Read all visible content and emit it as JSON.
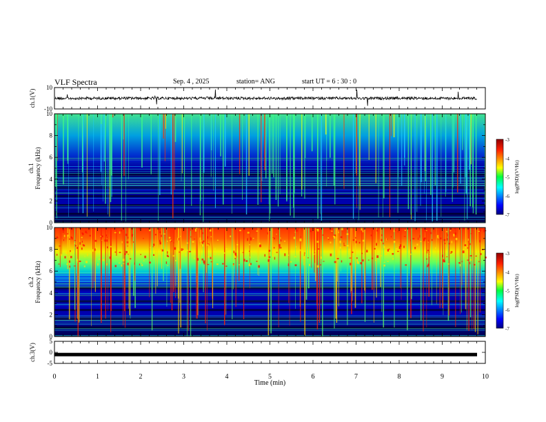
{
  "header": {
    "title": "VLF Spectra",
    "date": "Sep. 4  , 2025",
    "station": "station= ANG",
    "start_time": "start  UT  =   6  : 30 : 0"
  },
  "chart_data": [
    {
      "type": "line",
      "name": "ch1-waveform",
      "ylabel": "ch.1(V)",
      "ylim": [
        -10,
        10
      ],
      "yticks": [
        "10",
        "-10"
      ],
      "baseline": 0,
      "xlim": [
        0,
        10
      ]
    },
    {
      "type": "heatmap",
      "name": "ch1-spectrogram",
      "ylabel": "ch.1",
      "ylabel2": "Frequency  (kHz)",
      "ylim": [
        0,
        10
      ],
      "yticks": [
        "0",
        "2",
        "4",
        "6",
        "8",
        "10"
      ],
      "xlim": [
        0,
        9.8
      ],
      "colorbar": {
        "label": "log(PSD)(V²/Hz)",
        "range": [
          -7,
          -3
        ],
        "ticks": [
          "-3",
          "-4",
          "-5",
          "-6",
          "-7"
        ]
      }
    },
    {
      "type": "heatmap",
      "name": "ch2-spectrogram",
      "ylabel": "ch.2",
      "ylabel2": "Frequency  (kHz)",
      "ylim": [
        0,
        10
      ],
      "yticks": [
        "0",
        "2",
        "4",
        "6",
        "8",
        "10"
      ],
      "xlim": [
        0,
        9.8
      ],
      "colorbar": {
        "label": "log(PSD)(V²/Hz)",
        "range": [
          -7,
          -3
        ],
        "ticks": [
          "-3",
          "-4",
          "-5",
          "-6",
          "-7"
        ]
      }
    },
    {
      "type": "line",
      "name": "ch3-waveform",
      "ylabel": "ch.3(V)",
      "ylim": [
        -5,
        5
      ],
      "yticks": [
        "5",
        "0",
        "-5"
      ],
      "baseline": -1,
      "xlim": [
        0,
        10
      ]
    }
  ],
  "x_axis": {
    "label": "Time  (min)",
    "ticks": [
      "0",
      "1",
      "2",
      "3",
      "4",
      "5",
      "6",
      "7",
      "8",
      "9",
      "10"
    ]
  }
}
